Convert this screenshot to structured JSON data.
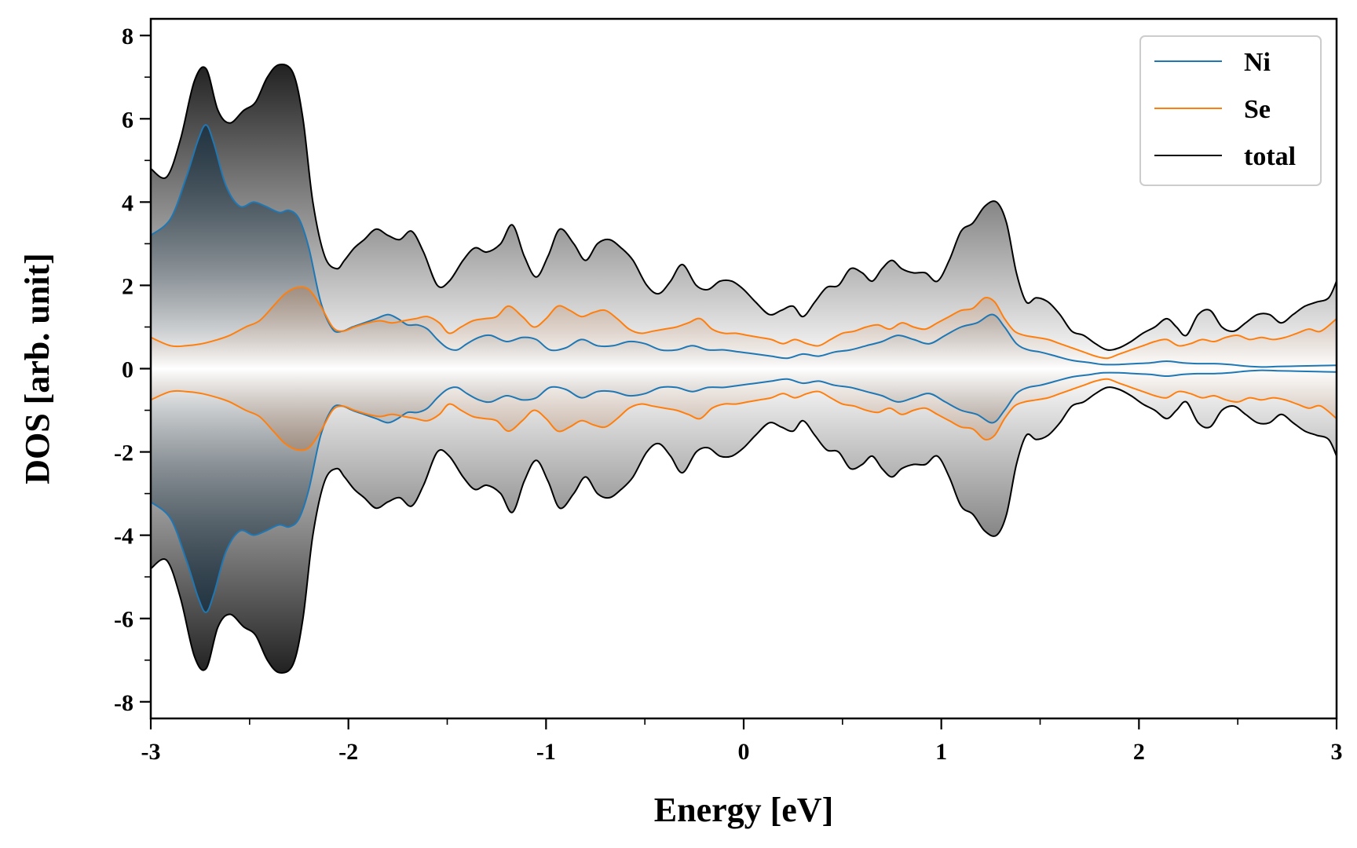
{
  "chart_data": {
    "type": "area",
    "xlabel": "Energy [eV]",
    "ylabel": "DOS [arb. unit]",
    "xlim": [
      -3,
      3
    ],
    "ylim": [
      -8.4,
      8.4
    ],
    "xticks": [
      -3,
      -2,
      -1,
      0,
      1,
      2,
      3
    ],
    "yticks": [
      -8,
      -6,
      -4,
      -2,
      0,
      2,
      4,
      6,
      8
    ],
    "legend_position": "top-right",
    "mirrored_about_zero": true,
    "series": [
      {
        "name": "total",
        "color": "#000000",
        "fill_color": "#000000",
        "x": [
          -3.0,
          -2.92,
          -2.85,
          -2.78,
          -2.72,
          -2.66,
          -2.6,
          -2.53,
          -2.47,
          -2.41,
          -2.35,
          -2.28,
          -2.23,
          -2.18,
          -2.12,
          -2.06,
          -2.02,
          -1.97,
          -1.92,
          -1.86,
          -1.8,
          -1.74,
          -1.68,
          -1.62,
          -1.55,
          -1.49,
          -1.42,
          -1.36,
          -1.3,
          -1.23,
          -1.17,
          -1.11,
          -1.05,
          -0.99,
          -0.93,
          -0.86,
          -0.8,
          -0.74,
          -0.68,
          -0.62,
          -0.56,
          -0.49,
          -0.43,
          -0.37,
          -0.31,
          -0.24,
          -0.18,
          -0.12,
          -0.06,
          0.0,
          0.06,
          0.13,
          0.19,
          0.25,
          0.3,
          0.36,
          0.42,
          0.48,
          0.54,
          0.6,
          0.65,
          0.7,
          0.75,
          0.8,
          0.86,
          0.92,
          0.98,
          1.04,
          1.1,
          1.16,
          1.22,
          1.28,
          1.33,
          1.38,
          1.43,
          1.48,
          1.54,
          1.6,
          1.66,
          1.72,
          1.78,
          1.84,
          1.9,
          1.96,
          2.02,
          2.08,
          2.14,
          2.19,
          2.24,
          2.3,
          2.36,
          2.42,
          2.48,
          2.54,
          2.6,
          2.66,
          2.72,
          2.78,
          2.84,
          2.9,
          2.96,
          3.0
        ],
        "values": [
          4.8,
          4.6,
          5.5,
          6.9,
          7.2,
          6.2,
          5.9,
          6.2,
          6.4,
          7.0,
          7.3,
          7.1,
          6.0,
          4.0,
          2.7,
          2.4,
          2.6,
          2.9,
          3.1,
          3.35,
          3.2,
          3.1,
          3.3,
          2.8,
          2.0,
          2.1,
          2.6,
          2.9,
          2.8,
          3.0,
          3.45,
          2.7,
          2.2,
          2.7,
          3.35,
          3.0,
          2.6,
          3.0,
          3.1,
          2.9,
          2.6,
          2.0,
          1.8,
          2.1,
          2.5,
          2.0,
          1.9,
          2.1,
          2.1,
          1.9,
          1.6,
          1.3,
          1.4,
          1.5,
          1.25,
          1.6,
          1.95,
          2.0,
          2.4,
          2.3,
          2.1,
          2.4,
          2.6,
          2.4,
          2.3,
          2.3,
          2.1,
          2.6,
          3.3,
          3.5,
          3.9,
          4.0,
          3.5,
          2.3,
          1.6,
          1.7,
          1.6,
          1.3,
          0.9,
          0.8,
          0.6,
          0.45,
          0.5,
          0.65,
          0.85,
          1.0,
          1.2,
          1.0,
          0.8,
          1.3,
          1.4,
          1.0,
          0.9,
          1.1,
          1.3,
          1.3,
          1.1,
          1.3,
          1.5,
          1.6,
          1.7,
          2.1
        ]
      },
      {
        "name": "Ni",
        "color": "#1f77b4",
        "fill_color": "#0f2a3d",
        "x": [
          -3.0,
          -2.9,
          -2.82,
          -2.76,
          -2.72,
          -2.68,
          -2.62,
          -2.55,
          -2.48,
          -2.42,
          -2.35,
          -2.3,
          -2.25,
          -2.2,
          -2.14,
          -2.08,
          -2.03,
          -1.98,
          -1.92,
          -1.86,
          -1.8,
          -1.75,
          -1.7,
          -1.65,
          -1.6,
          -1.55,
          -1.5,
          -1.45,
          -1.4,
          -1.34,
          -1.28,
          -1.2,
          -1.12,
          -1.05,
          -0.98,
          -0.9,
          -0.82,
          -0.74,
          -0.66,
          -0.58,
          -0.5,
          -0.42,
          -0.34,
          -0.26,
          -0.18,
          -0.1,
          -0.02,
          0.06,
          0.14,
          0.22,
          0.3,
          0.38,
          0.46,
          0.54,
          0.62,
          0.7,
          0.78,
          0.86,
          0.94,
          1.02,
          1.1,
          1.18,
          1.26,
          1.32,
          1.38,
          1.44,
          1.5,
          1.58,
          1.66,
          1.74,
          1.82,
          1.9,
          1.98,
          2.06,
          2.14,
          2.22,
          2.3,
          2.38,
          2.46,
          2.54,
          2.62,
          2.7,
          2.8,
          2.9,
          3.0
        ],
        "values": [
          3.2,
          3.6,
          4.6,
          5.5,
          5.85,
          5.4,
          4.4,
          3.9,
          4.0,
          3.9,
          3.75,
          3.8,
          3.6,
          2.9,
          1.6,
          0.95,
          0.9,
          1.0,
          1.1,
          1.2,
          1.3,
          1.2,
          1.05,
          1.05,
          0.95,
          0.7,
          0.5,
          0.45,
          0.6,
          0.75,
          0.8,
          0.65,
          0.75,
          0.7,
          0.45,
          0.5,
          0.7,
          0.55,
          0.55,
          0.65,
          0.6,
          0.45,
          0.45,
          0.55,
          0.45,
          0.45,
          0.4,
          0.35,
          0.3,
          0.25,
          0.35,
          0.3,
          0.4,
          0.45,
          0.55,
          0.65,
          0.8,
          0.7,
          0.6,
          0.8,
          1.0,
          1.1,
          1.3,
          1.0,
          0.6,
          0.45,
          0.4,
          0.3,
          0.2,
          0.15,
          0.1,
          0.1,
          0.12,
          0.14,
          0.18,
          0.14,
          0.12,
          0.12,
          0.1,
          0.06,
          0.04,
          0.05,
          0.06,
          0.07,
          0.08
        ]
      },
      {
        "name": "Se",
        "color": "#ff7f0e",
        "fill_color": "#b8560e",
        "x": [
          -3.0,
          -2.9,
          -2.82,
          -2.74,
          -2.66,
          -2.6,
          -2.52,
          -2.45,
          -2.38,
          -2.32,
          -2.26,
          -2.2,
          -2.14,
          -2.08,
          -2.03,
          -1.97,
          -1.9,
          -1.84,
          -1.78,
          -1.72,
          -1.66,
          -1.6,
          -1.54,
          -1.49,
          -1.43,
          -1.37,
          -1.31,
          -1.25,
          -1.19,
          -1.12,
          -1.06,
          -1.0,
          -0.94,
          -0.88,
          -0.82,
          -0.76,
          -0.7,
          -0.64,
          -0.58,
          -0.52,
          -0.46,
          -0.4,
          -0.34,
          -0.28,
          -0.22,
          -0.16,
          -0.1,
          -0.04,
          0.02,
          0.08,
          0.14,
          0.2,
          0.26,
          0.32,
          0.38,
          0.44,
          0.5,
          0.56,
          0.62,
          0.68,
          0.74,
          0.8,
          0.86,
          0.92,
          0.98,
          1.04,
          1.1,
          1.16,
          1.22,
          1.27,
          1.32,
          1.37,
          1.42,
          1.48,
          1.54,
          1.6,
          1.66,
          1.72,
          1.78,
          1.84,
          1.9,
          1.96,
          2.02,
          2.08,
          2.14,
          2.2,
          2.26,
          2.32,
          2.38,
          2.44,
          2.5,
          2.56,
          2.62,
          2.68,
          2.74,
          2.8,
          2.86,
          2.92,
          3.0
        ],
        "values": [
          0.75,
          0.55,
          0.55,
          0.6,
          0.7,
          0.8,
          1.0,
          1.15,
          1.5,
          1.8,
          1.95,
          1.9,
          1.5,
          1.0,
          0.9,
          1.0,
          1.1,
          1.15,
          1.1,
          1.15,
          1.2,
          1.25,
          1.1,
          0.85,
          1.0,
          1.15,
          1.2,
          1.25,
          1.5,
          1.25,
          1.0,
          1.2,
          1.5,
          1.4,
          1.25,
          1.35,
          1.4,
          1.2,
          0.95,
          0.85,
          0.9,
          0.95,
          1.0,
          1.1,
          1.2,
          0.95,
          0.85,
          0.85,
          0.8,
          0.75,
          0.7,
          0.6,
          0.7,
          0.6,
          0.55,
          0.7,
          0.85,
          0.9,
          1.0,
          1.05,
          0.95,
          1.1,
          1.0,
          0.95,
          1.1,
          1.25,
          1.4,
          1.45,
          1.7,
          1.6,
          1.2,
          0.9,
          0.8,
          0.75,
          0.7,
          0.6,
          0.5,
          0.4,
          0.3,
          0.25,
          0.35,
          0.45,
          0.55,
          0.65,
          0.7,
          0.55,
          0.6,
          0.7,
          0.65,
          0.75,
          0.8,
          0.7,
          0.75,
          0.7,
          0.75,
          0.85,
          0.95,
          0.9,
          1.2
        ]
      }
    ]
  }
}
